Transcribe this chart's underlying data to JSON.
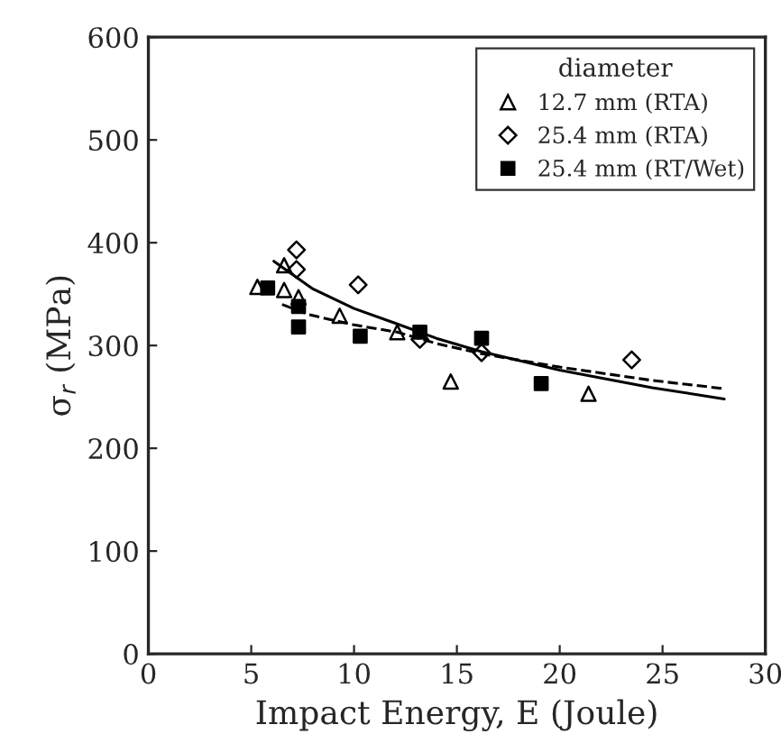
{
  "chart_data": {
    "type": "scatter",
    "xlabel": "Impact Energy, E (Joule)",
    "ylabel": "σ$_{r}$ (MPa)",
    "legend_title": "diameter",
    "legend": "top right",
    "grid": false,
    "xlim": [
      0,
      30
    ],
    "xticks": [
      0,
      5,
      10,
      15,
      20,
      25,
      30
    ],
    "ylim": [
      0,
      600
    ],
    "yticks": [
      0,
      100,
      200,
      300,
      400,
      500,
      600
    ],
    "series": [
      {
        "name": "12.7 mm (RTA)",
        "color": "#000000",
        "marker": "triangle",
        "x": [
          5.3,
          6.6,
          6.6,
          7.3,
          9.3,
          12.1,
          14.7,
          21.4
        ],
        "values": [
          357,
          378,
          354,
          347,
          329,
          313,
          265,
          253
        ]
      },
      {
        "name": "25.4 mm (RTA)",
        "color": "#000000",
        "marker": "diamond",
        "x": [
          7.2,
          7.2,
          10.2,
          13.2,
          16.2,
          23.5
        ],
        "values": [
          393,
          374,
          359,
          306,
          293,
          286
        ]
      },
      {
        "name": "25.4 mm (RT/Wet)",
        "color": "#000000",
        "marker": "square",
        "x": [
          5.8,
          7.3,
          7.3,
          10.3,
          13.2,
          16.2,
          19.1
        ],
        "values": [
          356,
          338,
          318,
          309,
          313,
          307,
          263
        ]
      },
      {
        "type": "line",
        "color": "#000000",
        "line_style": "solid",
        "x": [
          6.1,
          8,
          10,
          12.1,
          14,
          16.2,
          20,
          24.5,
          28
        ],
        "values": [
          382,
          355,
          336,
          321,
          307,
          294,
          276,
          259,
          248
        ]
      },
      {
        "type": "line",
        "color": "#000000",
        "line_style": "dashed",
        "x": [
          6.5,
          7.8,
          10,
          12.1,
          14,
          16.2,
          20,
          24.5,
          28
        ],
        "values": [
          340,
          330,
          320,
          313,
          302,
          292,
          279,
          266,
          258
        ]
      }
    ]
  }
}
